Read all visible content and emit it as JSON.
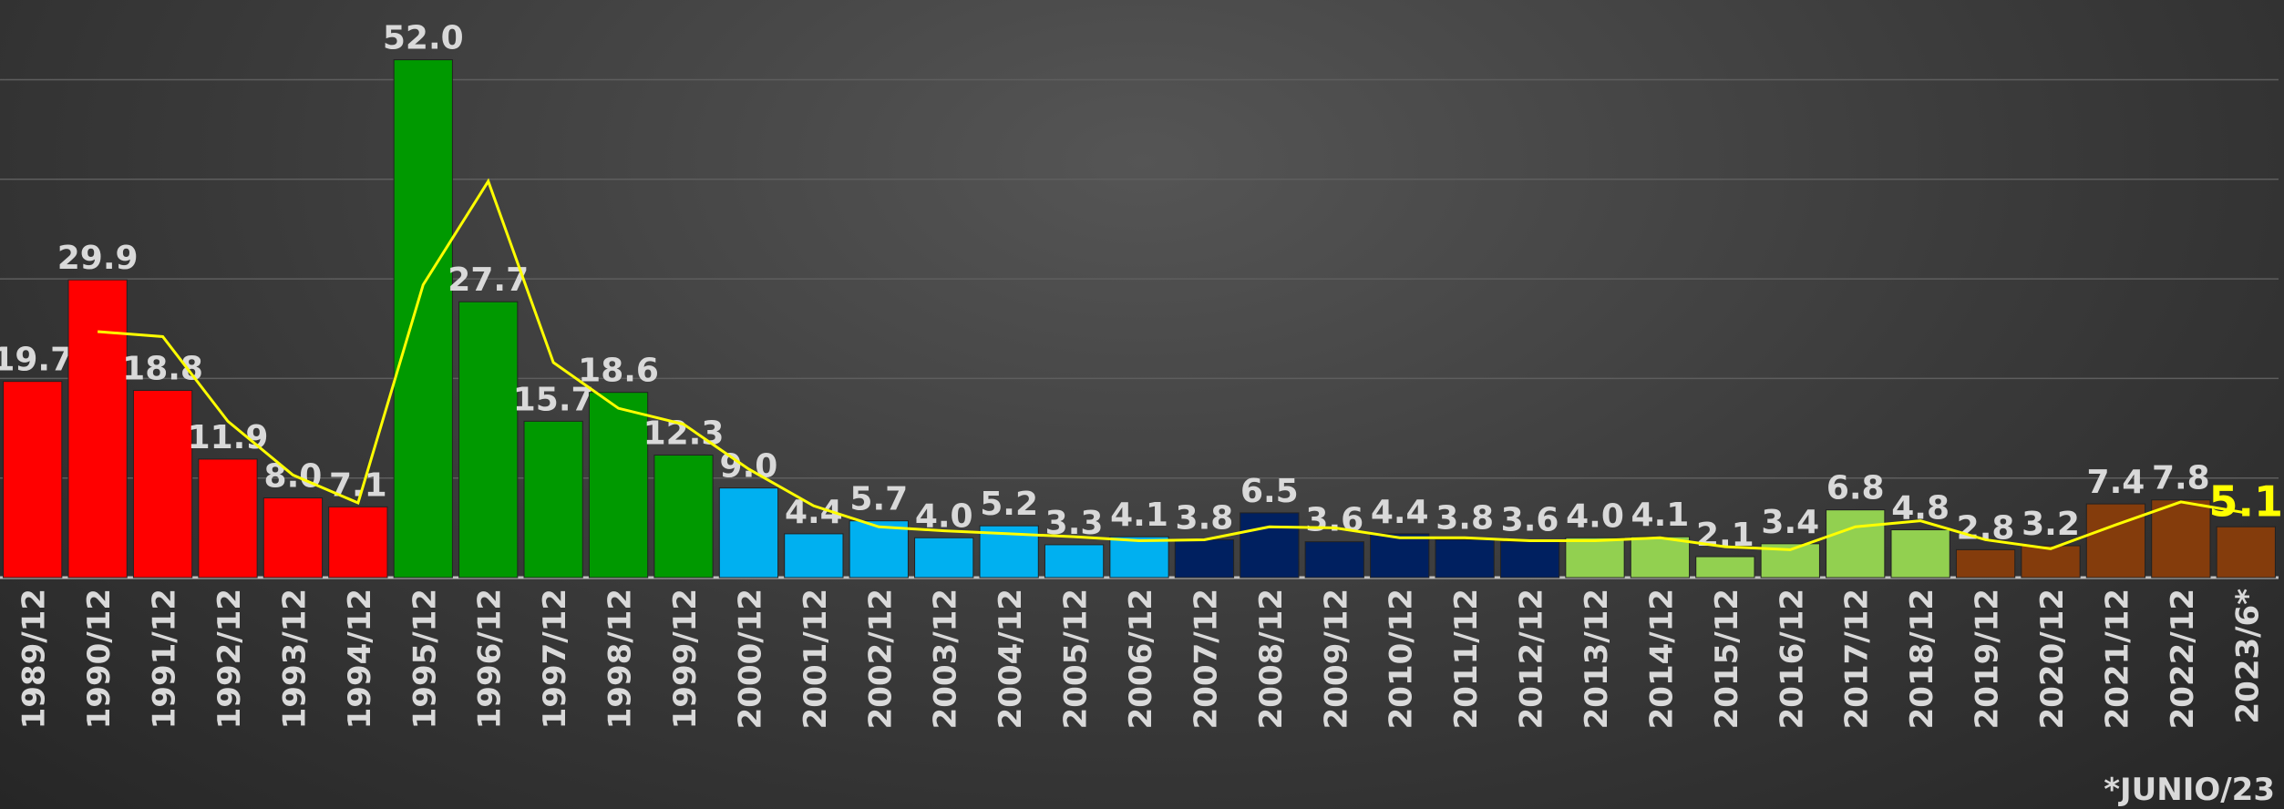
{
  "chart_data": {
    "type": "bar",
    "categories": [
      "1989/12",
      "1990/12",
      "1991/12",
      "1992/12",
      "1993/12",
      "1994/12",
      "1995/12",
      "1996/12",
      "1997/12",
      "1998/12",
      "1999/12",
      "2000/12",
      "2001/12",
      "2002/12",
      "2003/12",
      "2004/12",
      "2005/12",
      "2006/12",
      "2007/12",
      "2008/12",
      "2009/12",
      "2010/12",
      "2011/12",
      "2012/12",
      "2013/12",
      "2014/12",
      "2015/12",
      "2016/12",
      "2017/12",
      "2018/12",
      "2019/12",
      "2020/12",
      "2021/12",
      "2022/12",
      "2023/6*"
    ],
    "values": [
      19.7,
      29.9,
      18.8,
      11.9,
      8.0,
      7.1,
      52.0,
      27.7,
      15.7,
      18.6,
      12.3,
      9.0,
      4.4,
      5.7,
      4.0,
      5.2,
      3.3,
      4.1,
      3.8,
      6.5,
      3.6,
      4.4,
      3.8,
      3.6,
      4.0,
      4.1,
      2.1,
      3.4,
      6.8,
      4.8,
      2.8,
      3.2,
      7.4,
      7.8,
      5.1
    ],
    "value_labels": [
      "19.7",
      "29.9",
      "18.8",
      "11.9",
      "8.0",
      "7.1",
      "52.0",
      "27.7",
      "15.7",
      "18.6",
      "12.3",
      "9.0",
      "4.4",
      "5.7",
      "4.0",
      "5.2",
      "3.3",
      "4.1",
      "3.8",
      "6.5",
      "3.6",
      "4.4",
      "3.8",
      "3.6",
      "4.0",
      "4.1",
      "2.1",
      "3.4",
      "6.8",
      "4.8",
      "2.8",
      "3.2",
      "7.4",
      "7.8",
      "5.1"
    ],
    "colors": [
      "#ff0000",
      "#ff0000",
      "#ff0000",
      "#ff0000",
      "#ff0000",
      "#ff0000",
      "#009900",
      "#009900",
      "#009900",
      "#009900",
      "#009900",
      "#00b0f0",
      "#00b0f0",
      "#00b0f0",
      "#00b0f0",
      "#00b0f0",
      "#00b0f0",
      "#00b0f0",
      "#002060",
      "#002060",
      "#002060",
      "#002060",
      "#002060",
      "#002060",
      "#92d050",
      "#92d050",
      "#92d050",
      "#92d050",
      "#92d050",
      "#92d050",
      "#843c0c",
      "#843c0c",
      "#843c0c",
      "#843c0c",
      "#843c0c"
    ],
    "value_label_colors": [
      "#d9d9d9",
      "#d9d9d9",
      "#d9d9d9",
      "#d9d9d9",
      "#d9d9d9",
      "#d9d9d9",
      "#d9d9d9",
      "#d9d9d9",
      "#d9d9d9",
      "#d9d9d9",
      "#d9d9d9",
      "#d9d9d9",
      "#d9d9d9",
      "#d9d9d9",
      "#d9d9d9",
      "#d9d9d9",
      "#d9d9d9",
      "#d9d9d9",
      "#d9d9d9",
      "#d9d9d9",
      "#d9d9d9",
      "#d9d9d9",
      "#d9d9d9",
      "#d9d9d9",
      "#d9d9d9",
      "#d9d9d9",
      "#d9d9d9",
      "#d9d9d9",
      "#d9d9d9",
      "#d9d9d9",
      "#d9d9d9",
      "#d9d9d9",
      "#d9d9d9",
      "#d9d9d9",
      "#ffff00"
    ],
    "line": {
      "color": "#ffff00",
      "values": [
        null,
        24.7,
        24.2,
        15.7,
        10.3,
        7.5,
        29.4,
        39.8,
        21.6,
        17.0,
        15.4,
        10.9,
        7.2,
        5.1,
        4.7,
        4.4,
        4.1,
        3.7,
        3.8,
        5.1,
        5.0,
        4.0,
        4.0,
        3.7,
        3.7,
        4.0,
        3.1,
        2.8,
        5.1,
        5.7,
        3.8,
        2.9,
        5.3,
        7.6,
        6.5
      ]
    },
    "ylim": [
      0,
      58
    ],
    "yticks": [
      0,
      10,
      20,
      30,
      40,
      50
    ],
    "grid": true,
    "footnote": "*JUNIO/23"
  }
}
